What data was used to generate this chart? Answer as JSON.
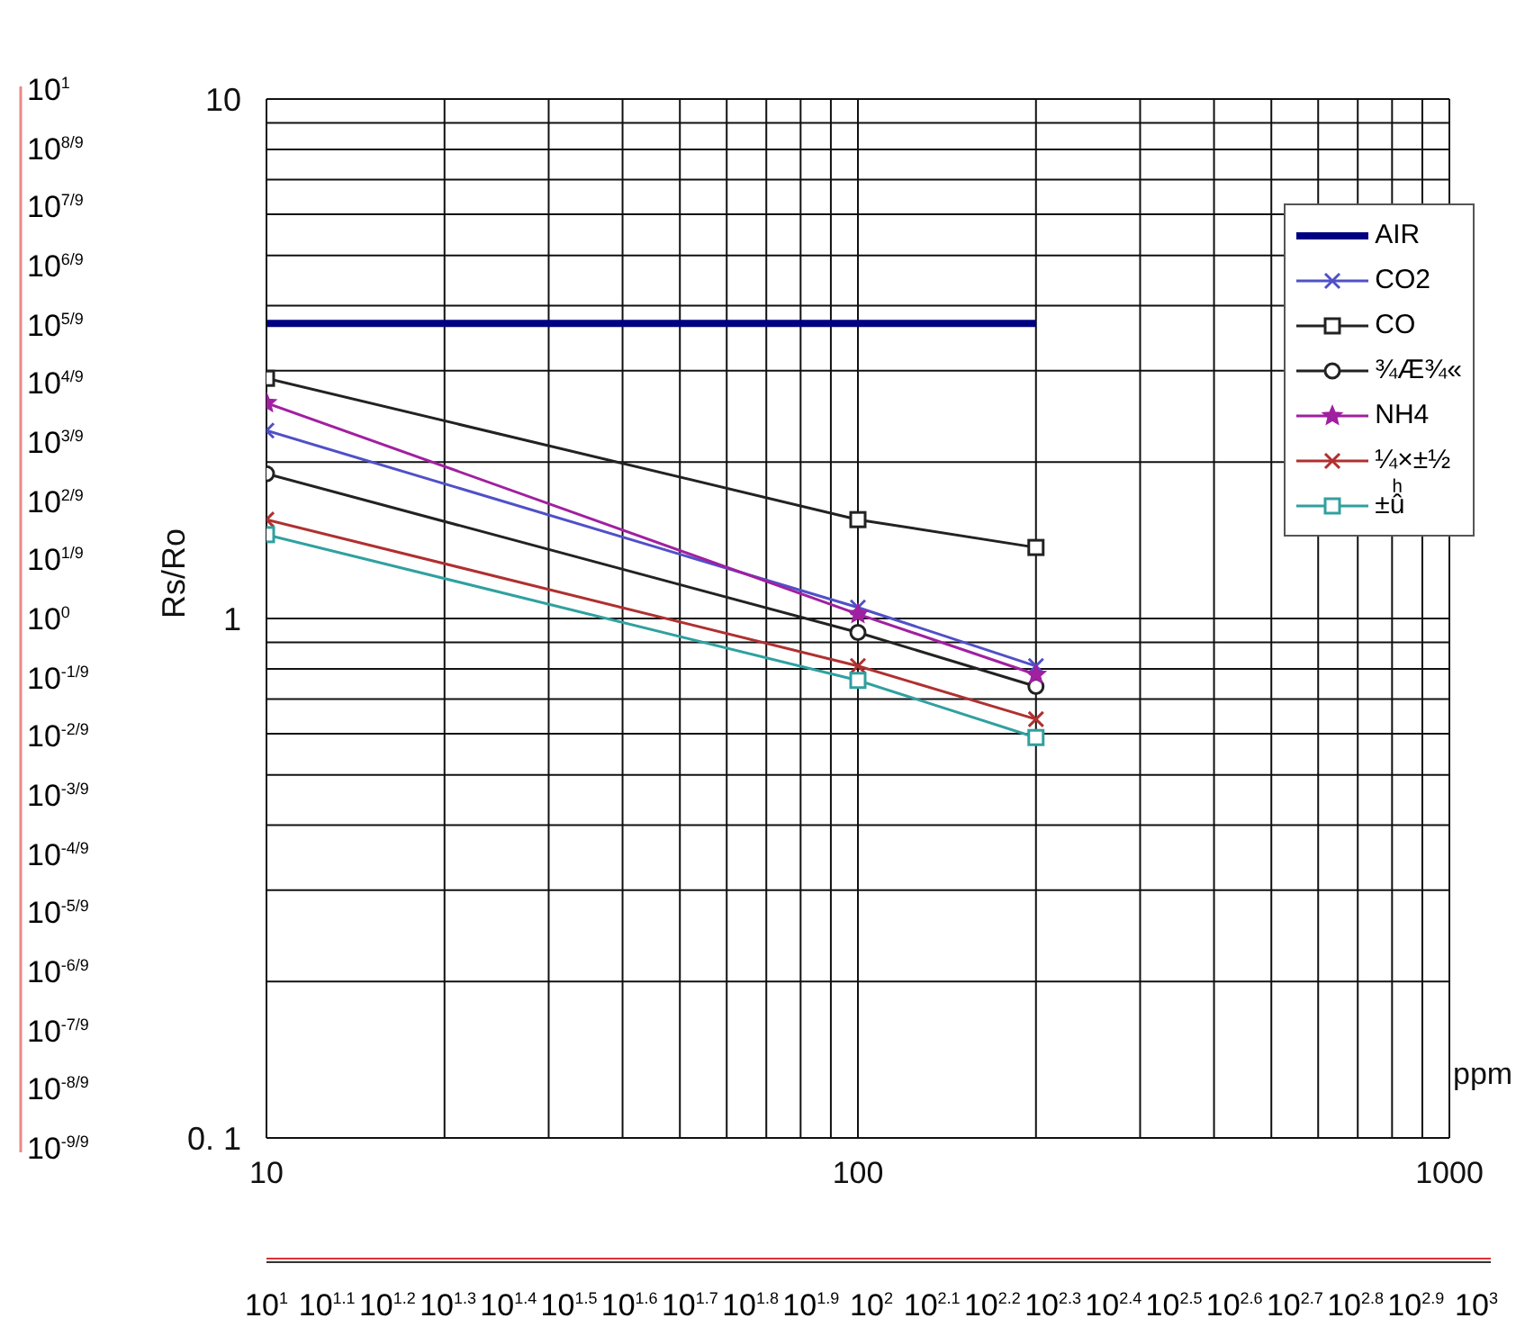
{
  "chart_data": {
    "type": "line",
    "xlabel": "ppm",
    "ylabel": "Rs/Ro",
    "log": "xy",
    "grid": true,
    "legend": "top right",
    "xlim": [
      10,
      1000
    ],
    "xticks": [
      10,
      {
        "value": 20,
        "label": null
      },
      {
        "value": 30,
        "label": null
      },
      {
        "value": 40,
        "label": null
      },
      {
        "value": 50,
        "label": null
      },
      {
        "value": 60,
        "label": null
      },
      {
        "value": 70,
        "label": null
      },
      {
        "value": 80,
        "label": null
      },
      {
        "value": 90,
        "label": null
      },
      100,
      {
        "value": 200,
        "label": null
      },
      {
        "value": 300,
        "label": null
      },
      {
        "value": 400,
        "label": null
      },
      {
        "value": 500,
        "label": null
      },
      {
        "value": 600,
        "label": null
      },
      {
        "value": 700,
        "label": null
      },
      {
        "value": 800,
        "label": null
      },
      {
        "value": 900,
        "label": null
      },
      1000
    ],
    "ylim": [
      0.1,
      10
    ],
    "yticks": [
      {
        "value": 0.1,
        "label": "0. 1"
      },
      {
        "value": 0.2,
        "label": null
      },
      {
        "value": 0.3,
        "label": null
      },
      {
        "value": 0.4,
        "label": null
      },
      {
        "value": 0.5,
        "label": null
      },
      {
        "value": 0.6,
        "label": null
      },
      {
        "value": 0.7,
        "label": null
      },
      {
        "value": 0.8,
        "label": null
      },
      {
        "value": 0.9,
        "label": null
      },
      1,
      {
        "value": 2,
        "label": null
      },
      {
        "value": 3,
        "label": null
      },
      {
        "value": 4,
        "label": null
      },
      {
        "value": 5,
        "label": null
      },
      {
        "value": 6,
        "label": null
      },
      {
        "value": 7,
        "label": null
      },
      {
        "value": 8,
        "label": null
      },
      {
        "value": 9,
        "label": null
      },
      10
    ],
    "annotations": [
      "10$^{1}$",
      "10$^{8/9}$",
      "10$^{7/9}$",
      "10$^{6/9}$",
      "10$^{5/9}$",
      "10$^{4/9}$",
      "10$^{3/9}$",
      "10$^{2/9}$",
      "10$^{1/9}$",
      "10$^{0}$",
      "10$^{-1/9}$",
      "10$^{-2/9}$",
      "10$^{-3/9}$",
      "10$^{-4/9}$",
      "10$^{-5/9}$",
      "10$^{-6/9}$",
      "10$^{-7/9}$",
      "10$^{-8/9}$",
      "10$^{-9/9}$",
      "10$^{1}$",
      "10$^{1.1}$",
      "10$^{1.2}$",
      "10$^{1.3}$",
      "10$^{1.4}$",
      "10$^{1.5}$",
      "10$^{1.6}$",
      "10$^{1.7}$",
      "10$^{1.8}$",
      "10$^{1.9}$",
      "10$^{2}$",
      "10$^{2.1}$",
      "10$^{2.2}$",
      "10$^{2.3}$",
      "10$^{2.4}$",
      "10$^{2.5}$",
      "10$^{2.6}$",
      "10$^{2.7}$",
      "10$^{2.8}$",
      "10$^{2.9}$",
      "10$^{3}$"
    ],
    "series": [
      {
        "name": "AIR",
        "color": "#000080",
        "marker": "none",
        "x": [
          10,
          200
        ],
        "values": [
          3.7,
          3.7
        ]
      },
      {
        "name": "CO2",
        "color": "#5050c8",
        "marker": "cross",
        "x": [
          10,
          100,
          200
        ],
        "values": [
          2.3,
          1.05,
          0.81
        ]
      },
      {
        "name": "CO",
        "color": "#222222",
        "marker": "square",
        "x": [
          10,
          100,
          200
        ],
        "values": [
          2.9,
          1.55,
          1.37
        ]
      },
      {
        "name": "¾Æ¾«",
        "color": "#222222",
        "marker": "circle",
        "x": [
          10,
          100,
          200
        ],
        "values": [
          1.9,
          0.94,
          0.74
        ]
      },
      {
        "name": "NH4",
        "color": "#a020a0",
        "marker": "star",
        "x": [
          10,
          100,
          200
        ],
        "values": [
          2.6,
          1.02,
          0.78
        ]
      },
      {
        "name": "¼×±½",
        "color": "#b03030",
        "marker": "cross",
        "x": [
          10,
          100,
          200
        ],
        "values": [
          1.55,
          0.81,
          0.64
        ]
      },
      {
        "name": "±ûͪ",
        "color": "#30a0a0",
        "marker": "square",
        "x": [
          10,
          100,
          200
        ],
        "values": [
          1.45,
          0.76,
          0.59
        ]
      }
    ]
  }
}
